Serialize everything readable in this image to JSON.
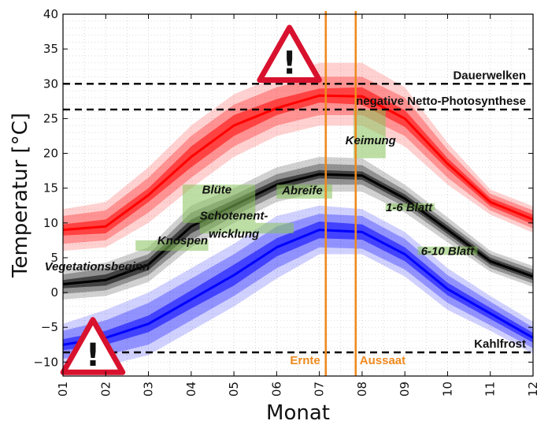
{
  "chart_data": {
    "type": "line",
    "xlabel": "Monat",
    "ylabel": "Temperatur [°C]",
    "xlim": [
      1,
      12
    ],
    "ylim": [
      -12,
      40
    ],
    "x_ticks": [
      1,
      2,
      3,
      4,
      5,
      6,
      7,
      8,
      9,
      10,
      11,
      12
    ],
    "x_tick_labels": [
      "01",
      "02",
      "03",
      "04",
      "05",
      "06",
      "07",
      "08",
      "09",
      "10",
      "11",
      "12"
    ],
    "y_ticks": [
      -10,
      -5,
      0,
      5,
      10,
      15,
      20,
      25,
      30,
      35,
      40
    ],
    "grid": true,
    "x": [
      1,
      2,
      3,
      4,
      5,
      6,
      7,
      8,
      9,
      10,
      11,
      12
    ],
    "series": [
      {
        "color": "#ff0000",
        "values": [
          9.0,
          9.5,
          14.0,
          19.5,
          24.0,
          26.5,
          28.3,
          28.2,
          25.0,
          18.5,
          13.0,
          10.5
        ],
        "band_inner": [
          [
            8.2,
            9.8
          ],
          [
            8.5,
            10.5
          ],
          [
            13.0,
            15.0
          ],
          [
            18.0,
            21.0
          ],
          [
            22.5,
            25.5
          ],
          [
            25.5,
            27.8
          ],
          [
            27.3,
            29.3
          ],
          [
            27.0,
            29.5
          ],
          [
            23.8,
            26.2
          ],
          [
            17.7,
            19.3
          ],
          [
            12.4,
            13.6
          ],
          [
            9.8,
            11.2
          ]
        ],
        "band_outer": [
          [
            7.0,
            11.0
          ],
          [
            7.5,
            11.8
          ],
          [
            11.5,
            16.5
          ],
          [
            16.5,
            22.5
          ],
          [
            21.0,
            27.0
          ],
          [
            24.0,
            29.5
          ],
          [
            25.5,
            31.0
          ],
          [
            25.5,
            31.0
          ],
          [
            22.5,
            28.0
          ],
          [
            16.5,
            20.5
          ],
          [
            11.8,
            14.2
          ],
          [
            9.2,
            11.8
          ]
        ],
        "band_outermost": [
          [
            6.0,
            12.0
          ],
          [
            6.5,
            13.0
          ],
          [
            10.0,
            18.0
          ],
          [
            15.0,
            24.0
          ],
          [
            19.5,
            28.5
          ],
          [
            22.5,
            31.0
          ],
          [
            24.0,
            33.0
          ],
          [
            24.0,
            33.0
          ],
          [
            21.0,
            29.5
          ],
          [
            15.5,
            21.5
          ],
          [
            11.2,
            14.8
          ],
          [
            8.6,
            12.4
          ]
        ]
      },
      {
        "color": "#000000",
        "values": [
          1.2,
          1.8,
          4.0,
          9.5,
          12.5,
          15.5,
          17.0,
          16.8,
          13.5,
          9.0,
          4.5,
          2.3
        ],
        "band_inner": [
          [
            0.6,
            1.8
          ],
          [
            1.0,
            2.6
          ],
          [
            3.2,
            4.8
          ],
          [
            8.5,
            10.5
          ],
          [
            11.7,
            13.3
          ],
          [
            14.8,
            16.2
          ],
          [
            16.4,
            17.6
          ],
          [
            16.2,
            17.4
          ],
          [
            12.9,
            14.1
          ],
          [
            8.4,
            9.6
          ],
          [
            4.0,
            5.0
          ],
          [
            1.8,
            2.8
          ]
        ],
        "band_outer": [
          [
            -0.2,
            2.6
          ],
          [
            0.3,
            3.5
          ],
          [
            2.5,
            5.5
          ],
          [
            7.5,
            11.5
          ],
          [
            11.0,
            14.0
          ],
          [
            14.0,
            17.0
          ],
          [
            15.5,
            18.5
          ],
          [
            15.5,
            18.3
          ],
          [
            12.3,
            14.7
          ],
          [
            7.9,
            10.1
          ],
          [
            3.5,
            5.5
          ],
          [
            1.3,
            3.3
          ]
        ],
        "band_outermost": [
          [
            -1.0,
            3.4
          ],
          [
            -0.5,
            4.3
          ],
          [
            1.5,
            6.5
          ],
          [
            6.5,
            12.5
          ],
          [
            10.0,
            15.0
          ],
          [
            13.0,
            18.0
          ],
          [
            14.5,
            19.5
          ],
          [
            14.5,
            19.3
          ],
          [
            11.5,
            15.5
          ],
          [
            7.2,
            10.8
          ],
          [
            3.0,
            6.0
          ],
          [
            0.8,
            3.8
          ]
        ]
      },
      {
        "color": "#0000ff",
        "values": [
          -7.5,
          -6.5,
          -4.5,
          -1.0,
          2.5,
          6.5,
          9.0,
          8.7,
          5.5,
          0.5,
          -3.0,
          -6.5
        ],
        "band_inner": [
          [
            -8.3,
            -6.7
          ],
          [
            -7.5,
            -5.5
          ],
          [
            -5.7,
            -3.3
          ],
          [
            -2.3,
            0.3
          ],
          [
            1.0,
            4.0
          ],
          [
            5.2,
            7.8
          ],
          [
            7.8,
            10.2
          ],
          [
            7.6,
            9.8
          ],
          [
            4.5,
            6.5
          ],
          [
            -0.4,
            1.4
          ],
          [
            -3.8,
            -2.2
          ],
          [
            -7.2,
            -5.8
          ]
        ],
        "band_outer": [
          [
            -9.5,
            -5.5
          ],
          [
            -9.0,
            -4.0
          ],
          [
            -7.5,
            -1.5
          ],
          [
            -4.0,
            2.0
          ],
          [
            -0.5,
            5.5
          ],
          [
            3.5,
            9.5
          ],
          [
            6.5,
            11.3
          ],
          [
            6.3,
            11.0
          ],
          [
            3.3,
            7.7
          ],
          [
            -1.5,
            2.5
          ],
          [
            -4.7,
            -1.3
          ],
          [
            -8.0,
            -5.0
          ]
        ],
        "band_outermost": [
          [
            -10.5,
            -4.5
          ],
          [
            -10.5,
            -2.5
          ],
          [
            -9.0,
            0.0
          ],
          [
            -5.5,
            3.5
          ],
          [
            -2.0,
            7.0
          ],
          [
            2.0,
            11.0
          ],
          [
            5.5,
            12.5
          ],
          [
            5.5,
            12.0
          ],
          [
            2.3,
            8.7
          ],
          [
            -2.5,
            3.5
          ],
          [
            -5.5,
            -0.5
          ],
          [
            -8.8,
            -4.2
          ]
        ]
      }
    ],
    "thresholds": [
      {
        "label": "Dauerwelken",
        "y": 30
      },
      {
        "label": "negative Netto-Photosynthese",
        "y": 26.3
      },
      {
        "label": "Kahlfrost",
        "y": -8.6
      }
    ],
    "markers": [
      {
        "label": "Ernte",
        "x": 7.15
      },
      {
        "label": "Aussaat",
        "x": 7.85
      }
    ],
    "phases": [
      {
        "label": "Vegetationsbeginn",
        "x": 1.8,
        "y": 3.2,
        "box": false
      },
      {
        "label": "Knospen",
        "x": 3.8,
        "y": 6.9,
        "box": true,
        "box_x": [
          2.7,
          4.4
        ],
        "box_y": [
          6.0,
          7.5
        ]
      },
      {
        "label": "Blüte",
        "x": 4.6,
        "y": 14.2,
        "box": true,
        "box_x": [
          3.8,
          5.5
        ],
        "box_y": [
          10.0,
          15.5
        ]
      },
      {
        "label": "Schotenent-",
        "x": 5.0,
        "y": 10.5,
        "box": false
      },
      {
        "label": "wicklung",
        "x": 5.0,
        "y": 7.9,
        "box": true,
        "box_x": [
          4.2,
          6.4
        ],
        "box_y": [
          8.5,
          10.0
        ]
      },
      {
        "label": "Abreife",
        "x": 6.6,
        "y": 14.1,
        "box": true,
        "box_x": [
          6.0,
          7.3
        ],
        "box_y": [
          13.5,
          15.5
        ]
      },
      {
        "label": "Keimung",
        "x": 8.2,
        "y": 21.3,
        "box": true,
        "box_x": [
          7.8,
          8.55
        ],
        "box_y": [
          19.3,
          26.3
        ]
      },
      {
        "label": "1-6 Blatt",
        "x": 9.1,
        "y": 11.7,
        "box": true,
        "box_x": [
          8.55,
          9.7
        ],
        "box_y": [
          11.8,
          12.8
        ]
      },
      {
        "label": "6-10 Blatt",
        "x": 10.0,
        "y": 5.4,
        "box": true,
        "box_x": [
          9.3,
          10.7
        ],
        "box_y": [
          5.4,
          6.6
        ]
      }
    ],
    "warnings": [
      {
        "x": 6.3,
        "y": 34.0,
        "mark": "!"
      },
      {
        "x": 1.7,
        "y": -8.0,
        "mark": "!"
      }
    ]
  }
}
